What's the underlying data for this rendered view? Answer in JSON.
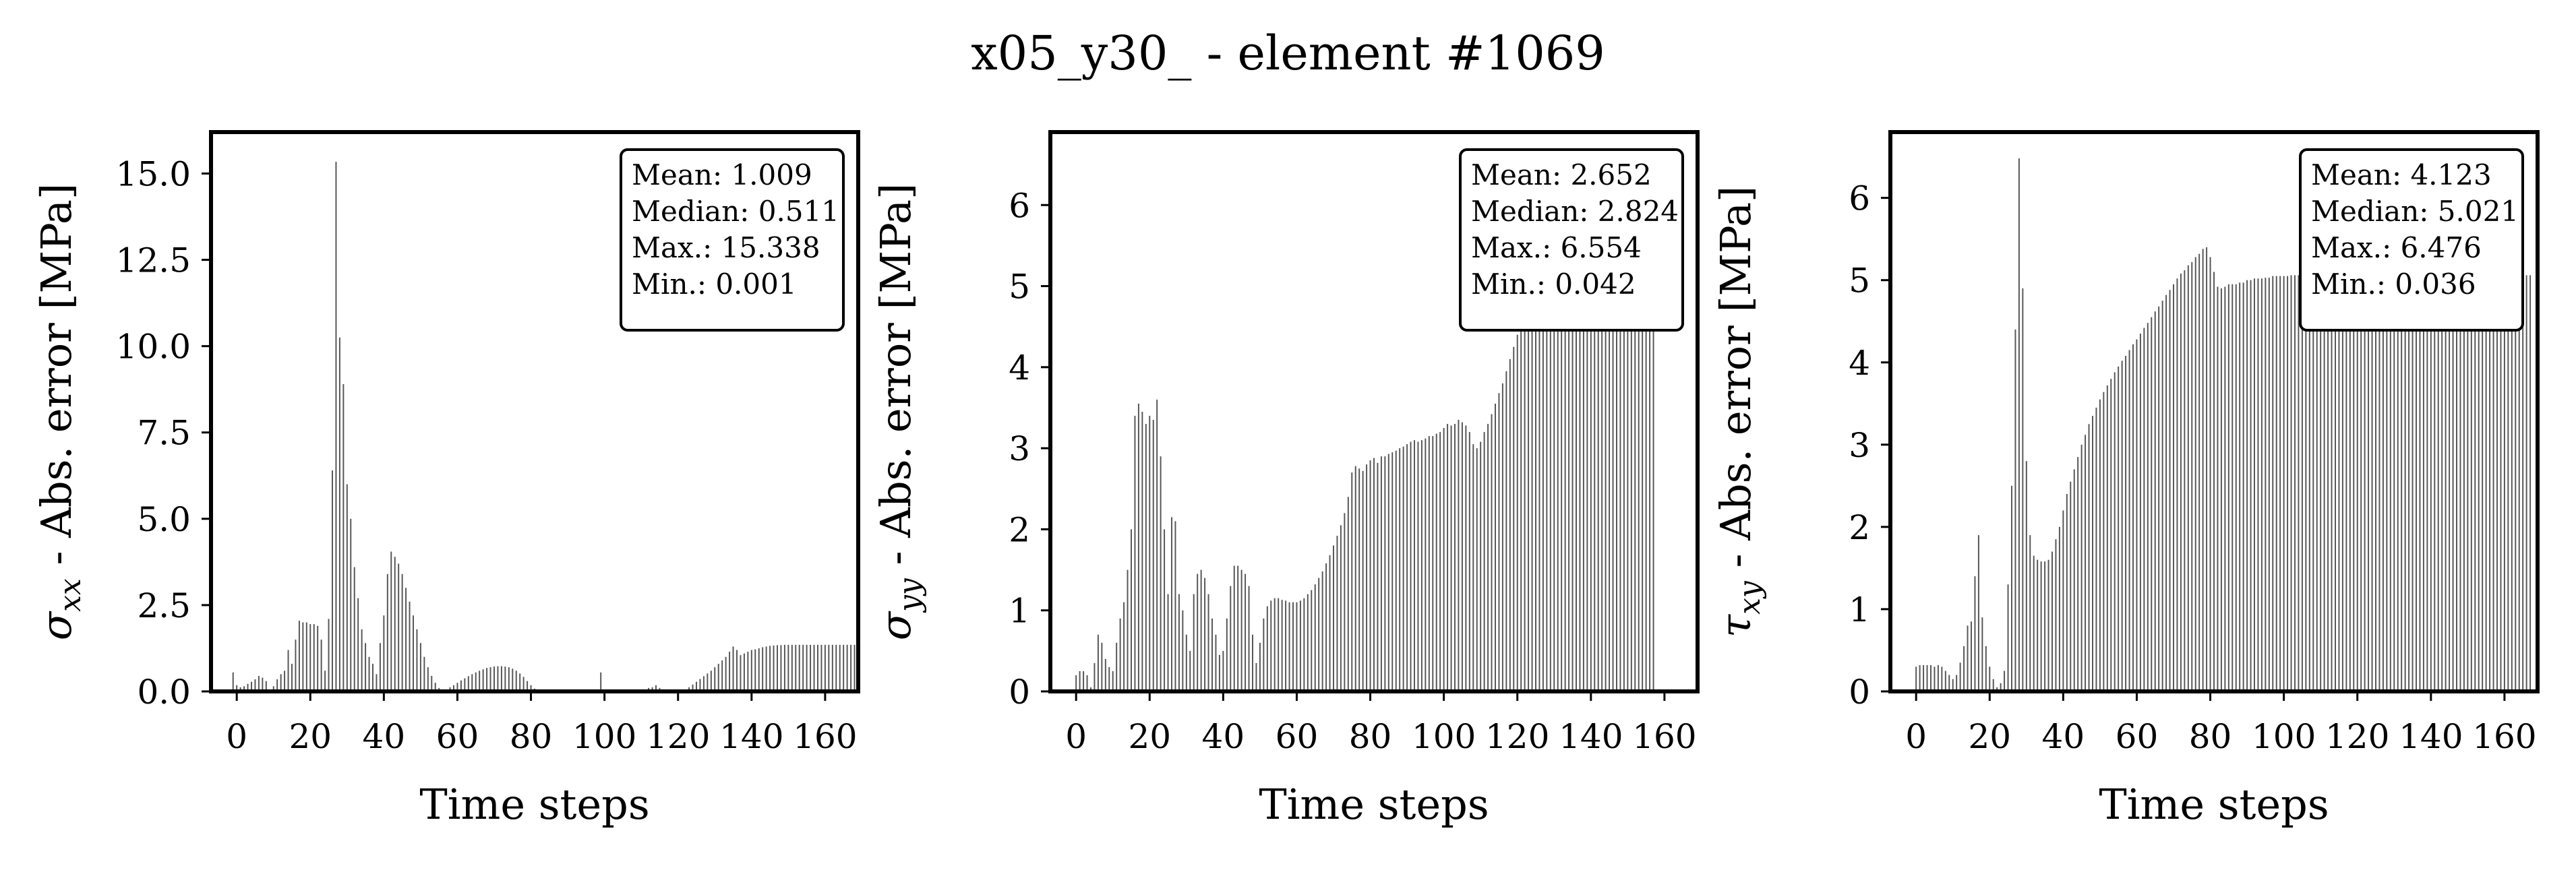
{
  "figure": {
    "suptitle": "x05_y30_ - element #1069"
  },
  "chart_data": [
    {
      "type": "bar",
      "title": "",
      "xlabel": "Time steps",
      "ylabel_symbol": "σ",
      "ylabel_sub": "xx",
      "ylabel_rest": " - Abs. error [MPa]",
      "xlim": [
        -7,
        169
      ],
      "ylim": [
        0,
        16.2
      ],
      "xticks": [
        0,
        20,
        40,
        60,
        80,
        100,
        120,
        140,
        160
      ],
      "yticks": [
        0.0,
        2.5,
        5.0,
        7.5,
        10.0,
        12.5,
        15.0
      ],
      "ytick_decimals": 1,
      "stats": [
        "Mean: 1.009",
        "Median: 0.511",
        "Max.: 15.338",
        "Min.: 0.001"
      ],
      "bar_color": "#555555",
      "x_start": -1,
      "values": [
        0.55,
        0.18,
        0.12,
        0.15,
        0.22,
        0.28,
        0.35,
        0.45,
        0.4,
        0.3,
        0.05,
        0.15,
        0.35,
        0.5,
        0.6,
        1.2,
        0.8,
        1.5,
        2.05,
        2.0,
        2.0,
        1.95,
        1.95,
        1.9,
        1.5,
        0.6,
        2.1,
        6.4,
        15.34,
        10.25,
        8.9,
        6.0,
        5.0,
        3.6,
        2.7,
        1.8,
        1.4,
        1.0,
        0.8,
        0.5,
        1.4,
        2.2,
        3.4,
        4.05,
        3.9,
        3.7,
        3.4,
        3.0,
        2.6,
        2.2,
        1.8,
        1.4,
        1.0,
        0.7,
        0.45,
        0.25,
        0.1,
        0.03,
        0.05,
        0.12,
        0.18,
        0.25,
        0.32,
        0.38,
        0.44,
        0.5,
        0.55,
        0.6,
        0.64,
        0.68,
        0.7,
        0.72,
        0.73,
        0.73,
        0.72,
        0.7,
        0.66,
        0.6,
        0.52,
        0.42,
        0.3,
        0.18,
        0.08,
        0.04,
        0.02,
        0.02,
        0.02,
        0.02,
        0.02,
        0.02,
        0.02,
        0.02,
        0.02,
        0.02,
        0.02,
        0.02,
        0.02,
        0.02,
        0.02,
        0.02,
        0.55,
        0.02,
        0.02,
        0.02,
        0.02,
        0.02,
        0.02,
        0.02,
        0.02,
        0.02,
        0.02,
        0.02,
        0.05,
        0.1,
        0.12,
        0.18,
        0.1,
        0.06,
        0.03,
        0.02,
        0.02,
        0.02,
        0.02,
        0.06,
        0.12,
        0.2,
        0.28,
        0.36,
        0.44,
        0.52,
        0.6,
        0.7,
        0.8,
        0.9,
        1.0,
        1.15,
        1.3,
        1.2,
        1.05,
        1.1,
        1.15,
        1.2,
        1.22,
        1.25,
        1.28,
        1.3,
        1.32,
        1.33,
        1.34,
        1.34,
        1.35,
        1.35,
        1.35,
        1.35,
        1.35,
        1.35,
        1.35,
        1.35,
        1.35,
        1.35,
        1.35,
        1.35,
        1.35,
        1.35,
        1.35,
        1.35,
        1.35,
        1.35,
        1.35,
        1.35
      ]
    },
    {
      "type": "bar",
      "title": "",
      "xlabel": "Time steps",
      "ylabel_symbol": "σ",
      "ylabel_sub": "yy",
      "ylabel_rest": " - Abs. error [MPa]",
      "xlim": [
        -7,
        169
      ],
      "ylim": [
        0,
        6.9
      ],
      "xticks": [
        0,
        20,
        40,
        60,
        80,
        100,
        120,
        140,
        160
      ],
      "yticks": [
        0,
        1,
        2,
        3,
        4,
        5,
        6
      ],
      "ytick_decimals": 0,
      "stats": [
        "Mean: 2.652",
        "Median: 2.824",
        "Max.: 6.554",
        "Min.: 0.042"
      ],
      "bar_color": "#555555",
      "x_start": 0,
      "values": [
        0.2,
        0.25,
        0.25,
        0.2,
        0.05,
        0.35,
        0.7,
        0.6,
        0.4,
        0.3,
        0.25,
        0.6,
        0.9,
        1.1,
        1.5,
        2.0,
        3.4,
        3.55,
        3.45,
        3.3,
        3.4,
        3.35,
        3.6,
        2.9,
        2.0,
        1.2,
        2.15,
        2.1,
        1.2,
        1.0,
        0.7,
        0.5,
        1.2,
        1.45,
        1.5,
        1.4,
        1.2,
        0.9,
        0.7,
        0.45,
        0.5,
        0.9,
        1.3,
        1.55,
        1.55,
        1.5,
        1.45,
        1.3,
        0.7,
        0.35,
        0.6,
        0.9,
        1.05,
        1.12,
        1.15,
        1.15,
        1.13,
        1.12,
        1.1,
        1.1,
        1.1,
        1.12,
        1.15,
        1.2,
        1.25,
        1.32,
        1.4,
        1.48,
        1.58,
        1.68,
        1.8,
        1.92,
        2.05,
        2.2,
        2.4,
        2.7,
        2.78,
        2.75,
        2.72,
        2.8,
        2.85,
        2.88,
        2.82,
        2.9,
        2.9,
        2.93,
        2.95,
        2.97,
        3.0,
        3.02,
        3.05,
        3.08,
        3.1,
        3.08,
        3.1,
        3.12,
        3.15,
        3.15,
        3.18,
        3.2,
        3.25,
        3.3,
        3.28,
        3.3,
        3.35,
        3.32,
        3.28,
        3.2,
        3.05,
        3.0,
        3.08,
        3.2,
        3.3,
        3.42,
        3.55,
        3.68,
        3.8,
        3.95,
        4.1,
        4.25,
        4.4,
        4.6,
        4.8,
        4.95,
        5.1,
        5.25,
        5.4,
        5.55,
        5.7,
        5.85,
        6.0,
        6.15,
        6.3,
        6.45,
        6.55,
        6.5,
        6.4,
        6.45,
        6.5,
        6.52,
        6.55,
        6.55,
        6.55,
        6.55,
        6.55,
        6.55,
        6.55,
        6.55,
        6.55,
        6.55,
        6.55,
        6.55,
        6.55,
        6.55,
        6.55,
        6.55,
        6.55,
        6.55
      ]
    },
    {
      "type": "bar",
      "title": "",
      "xlabel": "Time steps",
      "ylabel_symbol": "τ",
      "ylabel_sub": "xy",
      "ylabel_rest": " - Abs. error [MPa]",
      "xlim": [
        -7,
        169
      ],
      "ylim": [
        0,
        6.8
      ],
      "xticks": [
        0,
        20,
        40,
        60,
        80,
        100,
        120,
        140,
        160
      ],
      "yticks": [
        0,
        1,
        2,
        3,
        4,
        5,
        6
      ],
      "ytick_decimals": 0,
      "stats": [
        "Mean: 4.123",
        "Median: 5.021",
        "Max.: 6.476",
        "Min.: 0.036"
      ],
      "bar_color": "#555555",
      "x_start": 0,
      "values": [
        0.3,
        0.32,
        0.32,
        0.32,
        0.32,
        0.3,
        0.32,
        0.3,
        0.25,
        0.2,
        0.15,
        0.2,
        0.35,
        0.55,
        0.8,
        0.85,
        1.4,
        1.9,
        0.9,
        0.55,
        0.3,
        0.15,
        0.05,
        0.1,
        0.25,
        1.3,
        2.5,
        4.4,
        6.48,
        4.9,
        2.8,
        1.9,
        1.65,
        1.6,
        1.58,
        1.58,
        1.6,
        1.7,
        1.85,
        2.0,
        2.2,
        2.4,
        2.55,
        2.7,
        2.85,
        3.0,
        3.12,
        3.25,
        3.35,
        3.45,
        3.55,
        3.64,
        3.72,
        3.8,
        3.88,
        3.95,
        4.02,
        4.08,
        4.15,
        4.22,
        4.28,
        4.35,
        4.42,
        4.48,
        4.55,
        4.62,
        4.68,
        4.75,
        4.82,
        4.88,
        4.95,
        5.02,
        5.08,
        5.12,
        5.18,
        5.22,
        5.28,
        5.32,
        5.38,
        5.4,
        5.28,
        5.1,
        4.92,
        4.9,
        4.92,
        4.95,
        4.95,
        4.95,
        4.97,
        4.97,
        5.0,
        5.0,
        5.02,
        5.02,
        5.02,
        5.03,
        5.03,
        5.05,
        5.05,
        5.05,
        5.05,
        5.05,
        5.06,
        5.06,
        5.06,
        5.06,
        5.06,
        5.06,
        5.06,
        5.06,
        5.06,
        5.06,
        5.06,
        5.06,
        5.06,
        5.06,
        5.06,
        5.06,
        5.06,
        5.06,
        5.06,
        5.06,
        5.06,
        5.06,
        5.06,
        5.06,
        5.06,
        5.06,
        5.06,
        5.06,
        5.06,
        5.06,
        5.06,
        5.06,
        5.06,
        5.06,
        5.06,
        5.06,
        5.06,
        5.06,
        5.06,
        5.06,
        5.06,
        5.06,
        5.06,
        5.06,
        5.06,
        5.06,
        5.06,
        5.06,
        5.06,
        5.06,
        5.06,
        5.06,
        5.06,
        5.06,
        5.06,
        5.06,
        5.06,
        5.06,
        5.06,
        5.06,
        5.06,
        5.06,
        5.06,
        5.06,
        5.06,
        5.06
      ]
    }
  ]
}
